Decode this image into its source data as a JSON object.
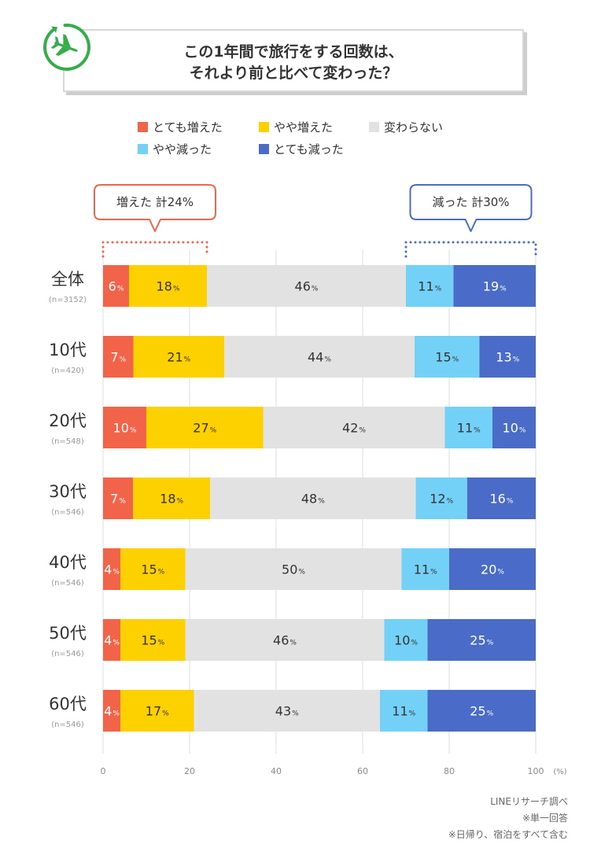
{
  "title": {
    "line1": "この1年間で旅行をする回数は、",
    "line2": "それより前と比べて変わった？"
  },
  "icon": "airplane-icon",
  "colors": {
    "icon_green": "#34ad4a"
  },
  "chart_data": {
    "type": "bar",
    "orientation": "horizontal",
    "stacked": "percent",
    "categories": [
      "全体",
      "10代",
      "20代",
      "30代",
      "40代",
      "50代",
      "60代"
    ],
    "sample_sizes": [
      "(n=3152)",
      "(n=420)",
      "(n=548)",
      "(n=546)",
      "(n=546)",
      "(n=546)",
      "(n=546)"
    ],
    "series": [
      {
        "name": "とても増えた",
        "color": "#f16449",
        "values": [
          6,
          7,
          10,
          7,
          4,
          4,
          4
        ]
      },
      {
        "name": "やや増えた",
        "color": "#fdd000",
        "values": [
          18,
          21,
          27,
          18,
          15,
          15,
          17
        ]
      },
      {
        "name": "変わらない",
        "color": "#e2e2e2",
        "values": [
          46,
          44,
          42,
          48,
          50,
          46,
          43
        ]
      },
      {
        "name": "やや減った",
        "color": "#73d0f7",
        "values": [
          11,
          15,
          11,
          12,
          11,
          10,
          11
        ]
      },
      {
        "name": "とても減った",
        "color": "#4a6bc8",
        "values": [
          19,
          13,
          10,
          16,
          20,
          25,
          25
        ]
      }
    ],
    "value_unit": "%",
    "xlim": [
      0,
      100
    ],
    "xticks": [
      0,
      20,
      40,
      60,
      80,
      100
    ],
    "xlabel": "(%)",
    "grid": true,
    "legend_position": "top",
    "annotations": [
      {
        "text": "増えた 計24%",
        "color": "#f0654a"
      },
      {
        "text": "減った 計30%",
        "color": "#4a6bc8"
      }
    ]
  },
  "footnotes": [
    "LINEリサーチ調べ",
    "※単一回答",
    "※日帰り、宿泊をすべて含む"
  ]
}
